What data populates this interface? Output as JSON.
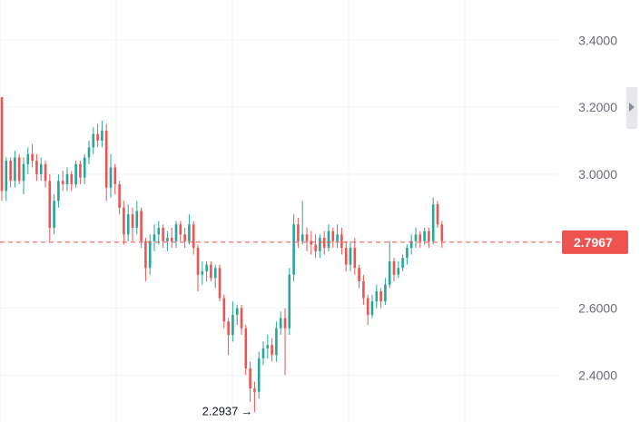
{
  "chart_data": {
    "type": "candlestick",
    "y_ticks": [
      "3.4000",
      "3.2000",
      "3.0000",
      "2.6000",
      "2.4000"
    ],
    "ylim": [
      2.26,
      3.52
    ],
    "grid": true,
    "current_price": 2.7967,
    "current_price_label": "2.7967",
    "low_value": 2.2937,
    "low_label": "2.2937",
    "low_arrow": "→",
    "colors": {
      "up": "#26a69a",
      "down": "#ef5350",
      "grid": "#f3f3f5",
      "text": "#6a6d78",
      "price_line": "#ef5350"
    },
    "candles": [
      [
        3.23,
        3.23,
        2.92,
        2.95
      ],
      [
        2.95,
        3.05,
        2.92,
        3.04
      ],
      [
        3.04,
        3.05,
        2.96,
        2.98
      ],
      [
        2.98,
        3.07,
        2.96,
        3.05
      ],
      [
        3.05,
        3.06,
        2.97,
        2.98
      ],
      [
        2.98,
        3.05,
        2.94,
        3.03
      ],
      [
        3.03,
        3.08,
        3.0,
        3.06
      ],
      [
        3.06,
        3.09,
        3.02,
        3.04
      ],
      [
        3.04,
        3.06,
        2.98,
        3.0
      ],
      [
        3.0,
        3.05,
        2.98,
        3.03
      ],
      [
        3.03,
        3.04,
        2.96,
        2.98
      ],
      [
        2.98,
        3.0,
        2.8,
        2.84
      ],
      [
        2.84,
        2.94,
        2.82,
        2.92
      ],
      [
        2.92,
        3.0,
        2.9,
        2.98
      ],
      [
        2.98,
        3.01,
        2.95,
        2.97
      ],
      [
        2.97,
        3.02,
        2.95,
        3.0
      ],
      [
        3.0,
        3.01,
        2.95,
        2.97
      ],
      [
        2.97,
        3.04,
        2.96,
        3.03
      ],
      [
        3.03,
        3.04,
        2.97,
        2.99
      ],
      [
        2.99,
        3.06,
        2.97,
        3.05
      ],
      [
        3.05,
        3.1,
        3.03,
        3.08
      ],
      [
        3.08,
        3.14,
        3.06,
        3.12
      ],
      [
        3.12,
        3.15,
        3.08,
        3.1
      ],
      [
        3.1,
        3.16,
        3.08,
        3.13
      ],
      [
        3.13,
        3.15,
        2.92,
        2.96
      ],
      [
        2.96,
        3.06,
        2.93,
        3.02
      ],
      [
        3.02,
        3.03,
        2.94,
        2.97
      ],
      [
        2.97,
        2.98,
        2.88,
        2.9
      ],
      [
        2.9,
        2.92,
        2.79,
        2.82
      ],
      [
        2.82,
        2.91,
        2.8,
        2.88
      ],
      [
        2.88,
        2.9,
        2.8,
        2.84
      ],
      [
        2.84,
        2.92,
        2.82,
        2.89
      ],
      [
        2.89,
        2.9,
        2.78,
        2.8
      ],
      [
        2.8,
        2.81,
        2.68,
        2.72
      ],
      [
        2.72,
        2.82,
        2.7,
        2.8
      ],
      [
        2.8,
        2.85,
        2.77,
        2.82
      ],
      [
        2.82,
        2.86,
        2.79,
        2.84
      ],
      [
        2.84,
        2.85,
        2.78,
        2.8
      ],
      [
        2.8,
        2.83,
        2.77,
        2.81
      ],
      [
        2.81,
        2.84,
        2.78,
        2.8
      ],
      [
        2.8,
        2.86,
        2.78,
        2.85
      ],
      [
        2.85,
        2.86,
        2.8,
        2.82
      ],
      [
        2.82,
        2.84,
        2.78,
        2.8
      ],
      [
        2.8,
        2.88,
        2.79,
        2.85
      ],
      [
        2.85,
        2.86,
        2.76,
        2.78
      ],
      [
        2.78,
        2.79,
        2.65,
        2.7
      ],
      [
        2.7,
        2.74,
        2.67,
        2.71
      ],
      [
        2.71,
        2.74,
        2.68,
        2.73
      ],
      [
        2.73,
        2.74,
        2.68,
        2.69
      ],
      [
        2.69,
        2.73,
        2.66,
        2.72
      ],
      [
        2.72,
        2.73,
        2.62,
        2.63
      ],
      [
        2.63,
        2.64,
        2.54,
        2.56
      ],
      [
        2.56,
        2.57,
        2.46,
        2.52
      ],
      [
        2.52,
        2.62,
        2.5,
        2.58
      ],
      [
        2.58,
        2.61,
        2.55,
        2.6
      ],
      [
        2.6,
        2.61,
        2.52,
        2.54
      ],
      [
        2.54,
        2.55,
        2.4,
        2.42
      ],
      [
        2.42,
        2.44,
        2.32,
        2.36
      ],
      [
        2.36,
        2.38,
        2.29,
        2.35
      ],
      [
        2.35,
        2.47,
        2.33,
        2.45
      ],
      [
        2.45,
        2.5,
        2.43,
        2.48
      ],
      [
        2.48,
        2.52,
        2.45,
        2.49
      ],
      [
        2.49,
        2.51,
        2.44,
        2.46
      ],
      [
        2.46,
        2.56,
        2.44,
        2.54
      ],
      [
        2.54,
        2.59,
        2.52,
        2.57
      ],
      [
        2.57,
        2.6,
        2.4,
        2.54
      ],
      [
        2.54,
        2.72,
        2.52,
        2.7
      ],
      [
        2.7,
        2.88,
        2.68,
        2.85
      ],
      [
        2.85,
        2.87,
        2.78,
        2.8
      ],
      [
        2.8,
        2.92,
        2.79,
        2.82
      ],
      [
        2.82,
        2.84,
        2.77,
        2.8
      ],
      [
        2.8,
        2.83,
        2.76,
        2.79
      ],
      [
        2.79,
        2.82,
        2.75,
        2.77
      ],
      [
        2.77,
        2.82,
        2.75,
        2.81
      ],
      [
        2.81,
        2.83,
        2.76,
        2.78
      ],
      [
        2.78,
        2.85,
        2.77,
        2.83
      ],
      [
        2.83,
        2.84,
        2.78,
        2.8
      ],
      [
        2.8,
        2.85,
        2.78,
        2.82
      ],
      [
        2.82,
        2.84,
        2.76,
        2.78
      ],
      [
        2.78,
        2.8,
        2.71,
        2.73
      ],
      [
        2.73,
        2.8,
        2.71,
        2.78
      ],
      [
        2.78,
        2.81,
        2.7,
        2.72
      ],
      [
        2.72,
        2.73,
        2.66,
        2.68
      ],
      [
        2.68,
        2.7,
        2.61,
        2.63
      ],
      [
        2.63,
        2.64,
        2.55,
        2.58
      ],
      [
        2.58,
        2.64,
        2.57,
        2.62
      ],
      [
        2.62,
        2.67,
        2.6,
        2.65
      ],
      [
        2.65,
        2.66,
        2.6,
        2.62
      ],
      [
        2.62,
        2.69,
        2.61,
        2.67
      ],
      [
        2.67,
        2.8,
        2.66,
        2.74
      ],
      [
        2.74,
        2.75,
        2.68,
        2.7
      ],
      [
        2.7,
        2.74,
        2.69,
        2.72
      ],
      [
        2.72,
        2.76,
        2.71,
        2.75
      ],
      [
        2.75,
        2.79,
        2.73,
        2.78
      ],
      [
        2.78,
        2.82,
        2.76,
        2.8
      ],
      [
        2.8,
        2.84,
        2.78,
        2.82
      ],
      [
        2.82,
        2.83,
        2.78,
        2.8
      ],
      [
        2.8,
        2.84,
        2.79,
        2.83
      ],
      [
        2.83,
        2.84,
        2.78,
        2.8
      ],
      [
        2.8,
        2.93,
        2.79,
        2.91
      ],
      [
        2.91,
        2.92,
        2.84,
        2.85
      ],
      [
        2.85,
        2.86,
        2.78,
        2.8
      ]
    ]
  }
}
